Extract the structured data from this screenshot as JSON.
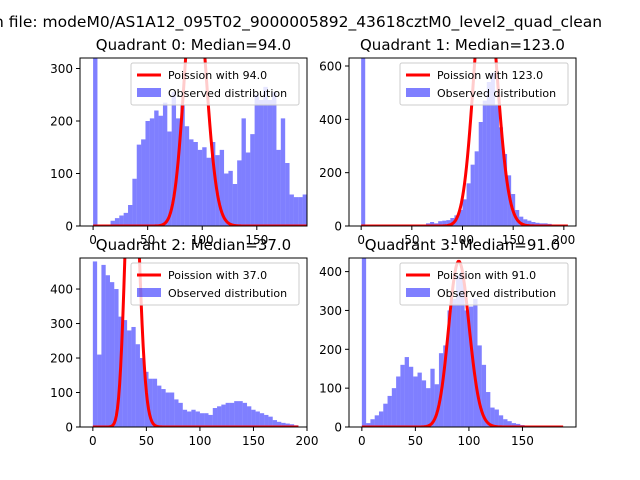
{
  "figure": {
    "suptitle": "n file: modeM0/AS1A12_095T02_9000005892_43618cztM0_level2_quad_clean"
  },
  "chart_data": [
    {
      "type": "bar",
      "title": "Quadrant 0: Median=94.0",
      "xlim": [
        -12,
        196
      ],
      "ylim": [
        0,
        320
      ],
      "xticks": [
        0,
        50,
        100,
        150
      ],
      "yticks": [
        0,
        100,
        200,
        300
      ],
      "legend": [
        "Poission with 94.0",
        "Observed distribution"
      ],
      "legend_position": "upper right",
      "hist_color": "#0000ff",
      "hist_alpha": 0.5,
      "hist": {
        "x0": 0,
        "width": 4,
        "counts": [
          330,
          0,
          0,
          0,
          10,
          15,
          20,
          25,
          40,
          90,
          155,
          165,
          200,
          205,
          220,
          210,
          235,
          180,
          255,
          205,
          230,
          190,
          165,
          160,
          145,
          150,
          130,
          160,
          135,
          145,
          100,
          105,
          80,
          125,
          205,
          140,
          175,
          250,
          240,
          265,
          240,
          255,
          145,
          205,
          120,
          60,
          55,
          55,
          60,
          40,
          18,
          15,
          10,
          5,
          0
        ]
      },
      "poisson": {
        "mean": 94.0,
        "scale": 11800,
        "color": "#ff0000"
      }
    },
    {
      "type": "bar",
      "title": "Quadrant 1: Median=123.0",
      "xlim": [
        -12,
        212
      ],
      "ylim": [
        0,
        630
      ],
      "xticks": [
        0,
        50,
        100,
        150,
        200
      ],
      "yticks": [
        0,
        200,
        400,
        600
      ],
      "legend": [
        "Poission with 123.0",
        "Observed distribution"
      ],
      "legend_position": "upper right",
      "hist_color": "#0000ff",
      "hist_alpha": 0.5,
      "hist": {
        "x0": 0,
        "width": 4,
        "counts": [
          640,
          0,
          0,
          0,
          0,
          0,
          0,
          0,
          0,
          0,
          0,
          0,
          0,
          0,
          0,
          0,
          10,
          15,
          10,
          18,
          20,
          22,
          30,
          40,
          60,
          100,
          160,
          230,
          280,
          390,
          470,
          540,
          575,
          455,
          370,
          270,
          190,
          120,
          60,
          35,
          25,
          20,
          15,
          12,
          10,
          10,
          8,
          5,
          5,
          3,
          2
        ]
      },
      "poisson": {
        "mean": 123.0,
        "scale": 27000,
        "color": "#ff0000"
      }
    },
    {
      "type": "bar",
      "title": "Quadrant 2: Median=37.0",
      "xlim": [
        -12,
        200
      ],
      "ylim": [
        0,
        490
      ],
      "xticks": [
        0,
        50,
        100,
        150,
        200
      ],
      "yticks": [
        0,
        100,
        200,
        300,
        400
      ],
      "legend": [
        "Poission with 37.0",
        "Observed distribution"
      ],
      "legend_position": "upper right",
      "hist_color": "#0000ff",
      "hist_alpha": 0.5,
      "hist": {
        "x0": 0,
        "width": 4,
        "counts": [
          480,
          210,
          470,
          440,
          420,
          400,
          320,
          310,
          280,
          290,
          240,
          200,
          160,
          140,
          140,
          120,
          110,
          100,
          100,
          80,
          70,
          50,
          45,
          50,
          45,
          40,
          40,
          35,
          55,
          60,
          65,
          70,
          70,
          75,
          75,
          70,
          60,
          50,
          45,
          40,
          35,
          30,
          20,
          15,
          12,
          10,
          8,
          5
        ]
      },
      "poisson": {
        "mean": 37.0,
        "scale": 14000,
        "color": "#ff0000"
      }
    },
    {
      "type": "bar",
      "title": "Quadrant 3: Median=91.0",
      "xlim": [
        -12,
        200
      ],
      "ylim": [
        0,
        435
      ],
      "xticks": [
        0,
        50,
        100,
        150
      ],
      "yticks": [
        0,
        100,
        200,
        300,
        400
      ],
      "legend": [
        "Poission with 91.0",
        "Observed distribution"
      ],
      "legend_position": "upper right",
      "hist_color": "#0000ff",
      "hist_alpha": 0.5,
      "hist": {
        "x0": 0,
        "width": 4,
        "counts": [
          440,
          10,
          20,
          30,
          40,
          60,
          80,
          100,
          130,
          160,
          180,
          155,
          130,
          140,
          120,
          100,
          150,
          110,
          190,
          210,
          300,
          330,
          390,
          400,
          300,
          310,
          330,
          210,
          160,
          90,
          50,
          45,
          30,
          20,
          15,
          10,
          8,
          5,
          3,
          2,
          2,
          1,
          1,
          1,
          0,
          0,
          0
        ]
      },
      "poisson": {
        "mean": 91.0,
        "scale": 10200,
        "color": "#ff0000"
      }
    }
  ]
}
